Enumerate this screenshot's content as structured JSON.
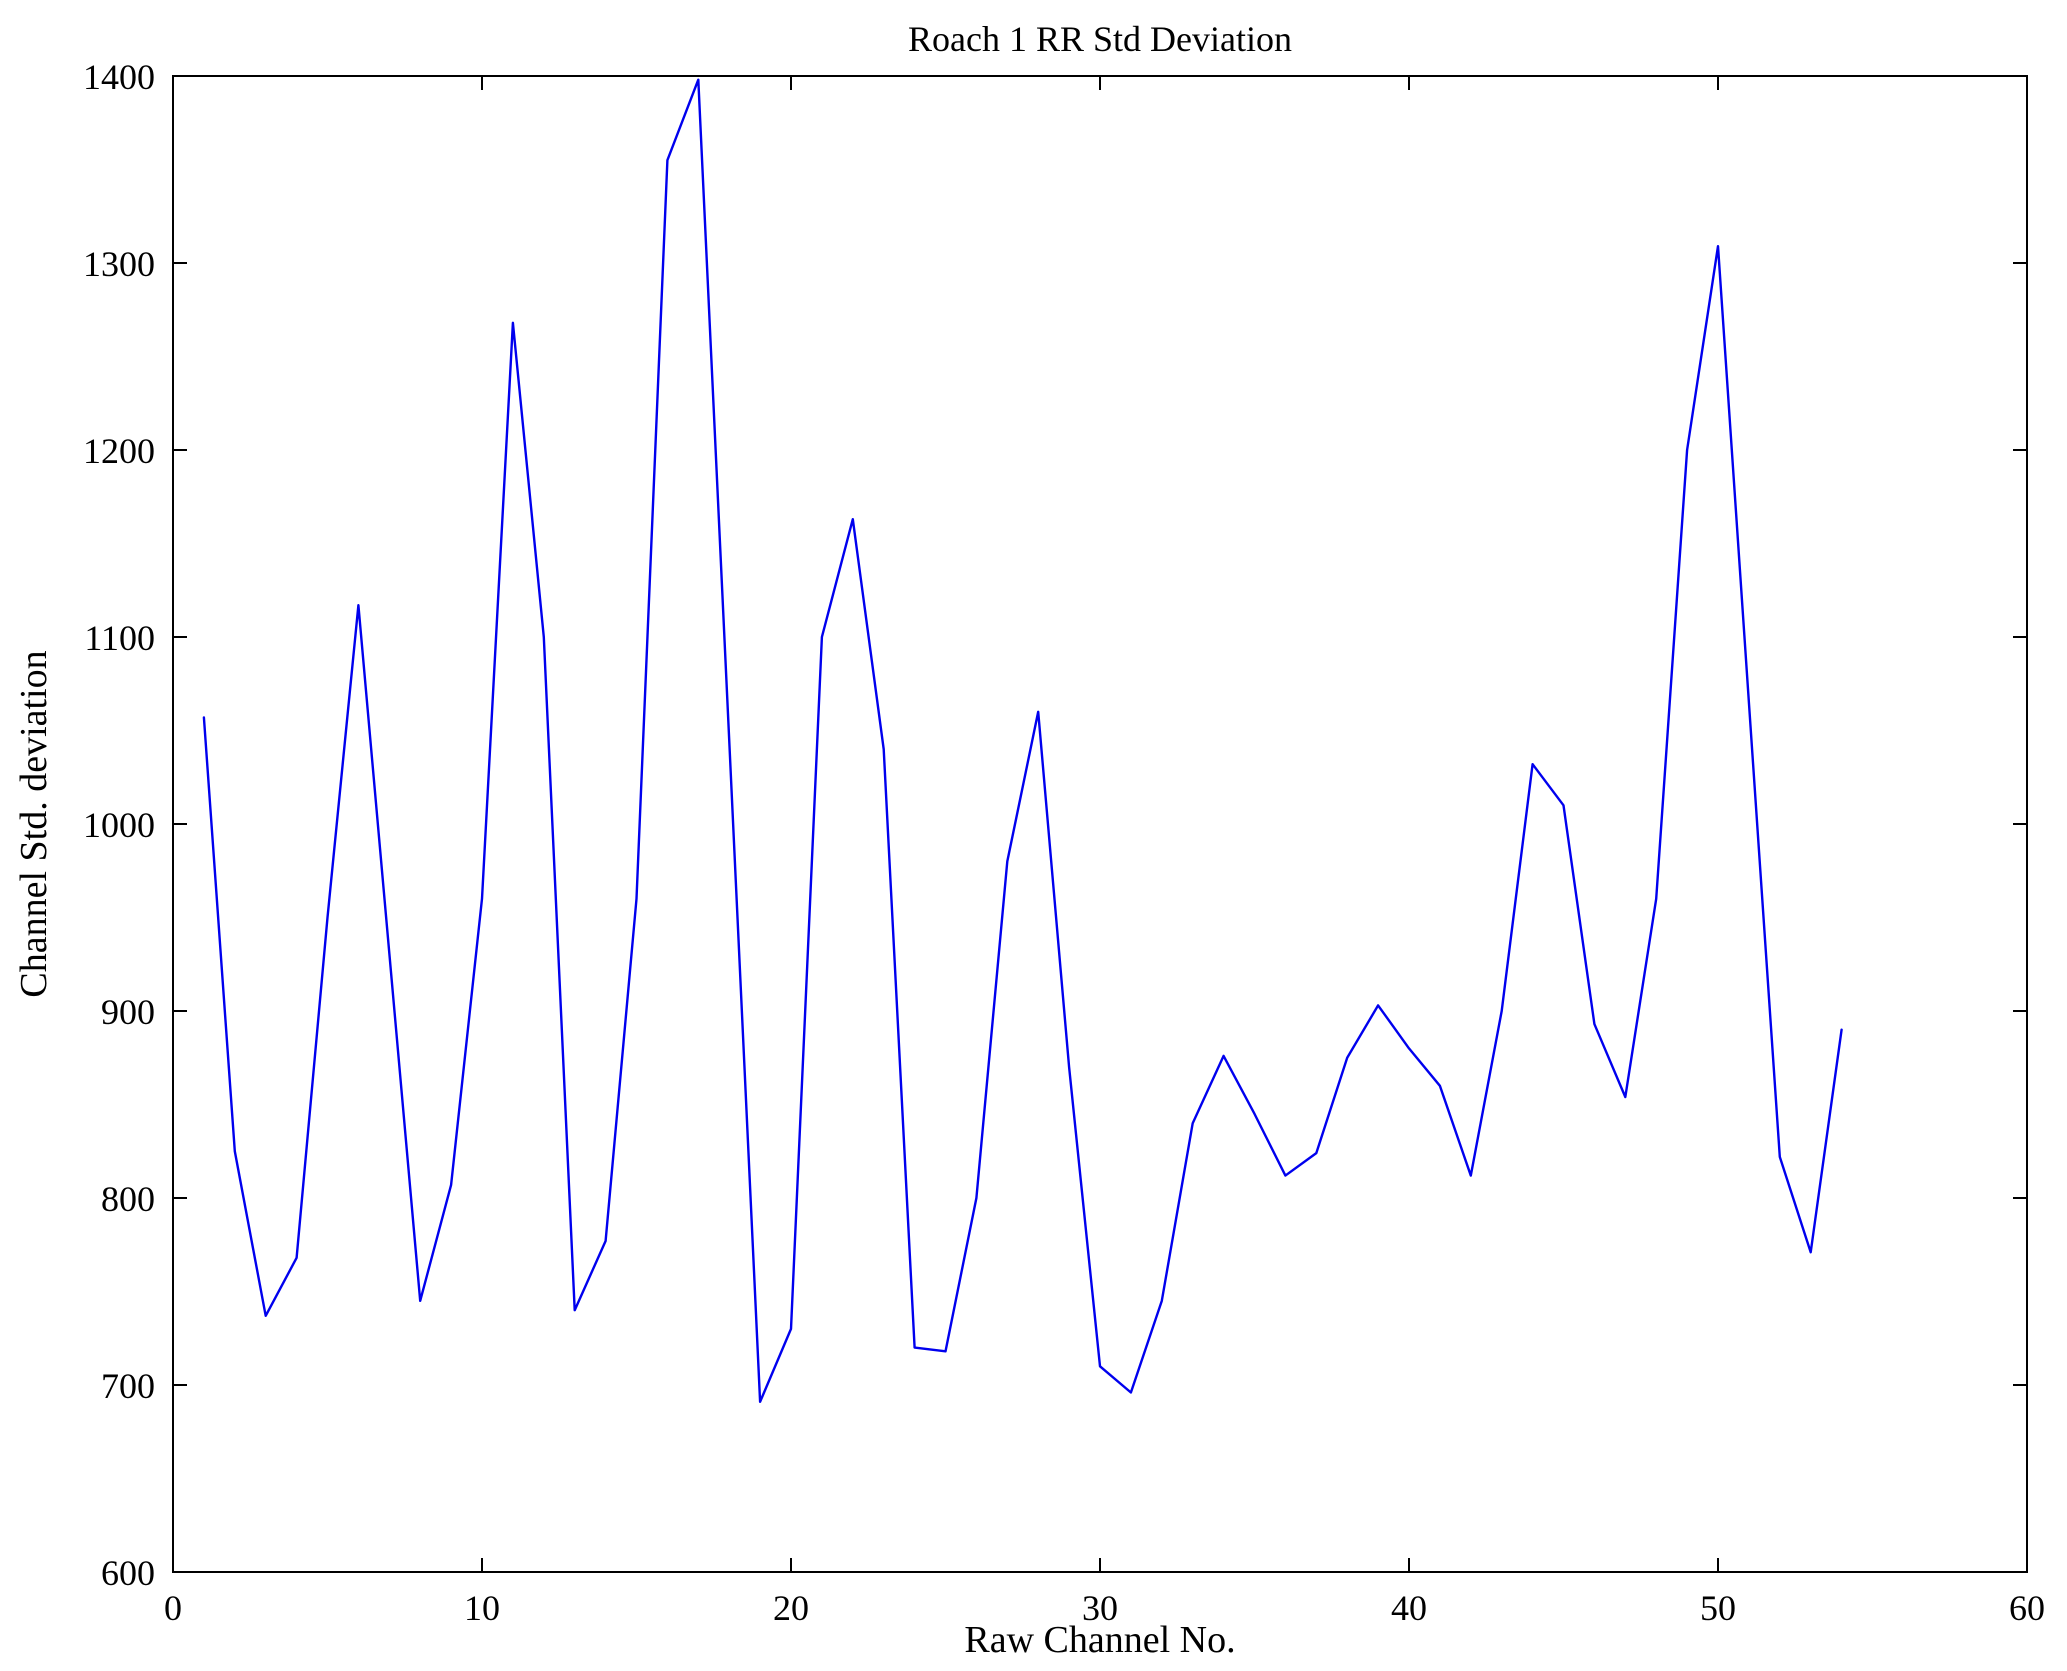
{
  "chart_data": {
    "type": "line",
    "title": "Roach 1 RR Std Deviation",
    "xlabel": "Raw Channel No.",
    "ylabel": "Channel Std. deviation",
    "xlim": [
      0,
      60
    ],
    "ylim": [
      600,
      1400
    ],
    "xticks": [
      0,
      10,
      20,
      30,
      40,
      50,
      60
    ],
    "yticks": [
      600,
      700,
      800,
      900,
      1000,
      1100,
      1200,
      1300,
      1400
    ],
    "grid": false,
    "legend": "none",
    "line_color": "#0000EE",
    "axis_color": "#000000",
    "background_color": "#FFFFFF",
    "x": [
      1,
      2,
      3,
      4,
      5,
      6,
      7,
      8,
      9,
      10,
      11,
      12,
      13,
      14,
      15,
      16,
      17,
      18,
      19,
      20,
      21,
      22,
      23,
      24,
      25,
      26,
      27,
      28,
      29,
      30,
      31,
      32,
      33,
      34,
      35,
      36,
      37,
      38,
      39,
      40,
      41,
      42,
      43,
      44,
      45,
      46,
      47,
      48,
      49,
      50,
      51,
      52,
      53,
      54
    ],
    "y": [
      1057,
      825,
      737,
      768,
      950,
      1117,
      931,
      745,
      807,
      960,
      1268,
      1100,
      740,
      777,
      960,
      1355,
      1398,
      1045,
      691,
      730,
      1100,
      1163,
      1040,
      720,
      718,
      800,
      980,
      1060,
      870,
      710,
      696,
      745,
      840,
      876,
      845,
      812,
      824,
      875,
      903,
      880,
      860,
      812,
      900,
      1032,
      1010,
      893,
      854,
      960,
      1200,
      1309,
      1065,
      822,
      771,
      890
    ]
  }
}
